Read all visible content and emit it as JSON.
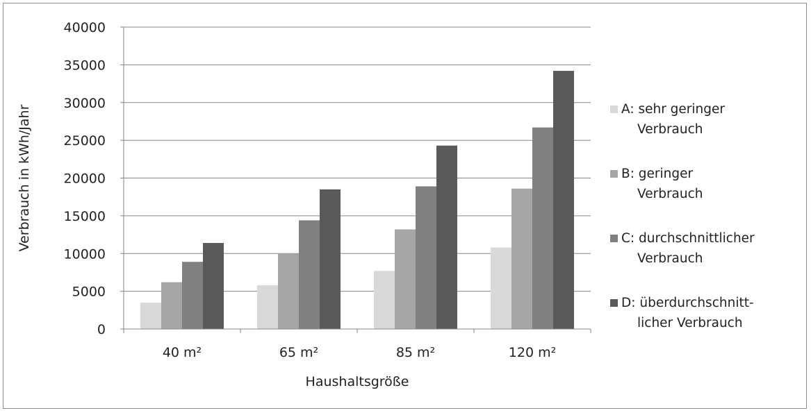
{
  "chart_data": {
    "type": "bar",
    "categories": [
      "40 m²",
      "65 m²",
      "85 m²",
      "120 m²"
    ],
    "series": [
      {
        "name": "A: sehr geringer Verbrauch",
        "legend_lines": [
          "A: sehr geringer",
          "Verbrauch"
        ],
        "color": "#d9d9d9",
        "values": [
          3500,
          5800,
          7700,
          10800
        ]
      },
      {
        "name": "B: geringer Verbrauch",
        "legend_lines": [
          "B: geringer",
          "Verbrauch"
        ],
        "color": "#a6a6a6",
        "values": [
          6200,
          10000,
          13200,
          18600
        ]
      },
      {
        "name": "C: durchschnittlicher Verbrauch",
        "legend_lines": [
          "C: durchschnittlicher",
          "Verbrauch"
        ],
        "color": "#808080",
        "values": [
          8900,
          14400,
          18900,
          26700
        ]
      },
      {
        "name": "D: überdurchschnittlicher Verbrauch",
        "legend_lines": [
          "D: überdurchschnitt-",
          "licher Verbrauch"
        ],
        "color": "#595959",
        "values": [
          11400,
          18500,
          24300,
          34200
        ]
      }
    ],
    "xlabel": "Haushaltsgröße",
    "ylabel": "Verbrauch in kWh/Jahr",
    "ylim": [
      0,
      40000
    ],
    "yticks": [
      0,
      5000,
      10000,
      15000,
      20000,
      25000,
      30000,
      35000,
      40000
    ],
    "grid": true,
    "legend_position": "right"
  }
}
